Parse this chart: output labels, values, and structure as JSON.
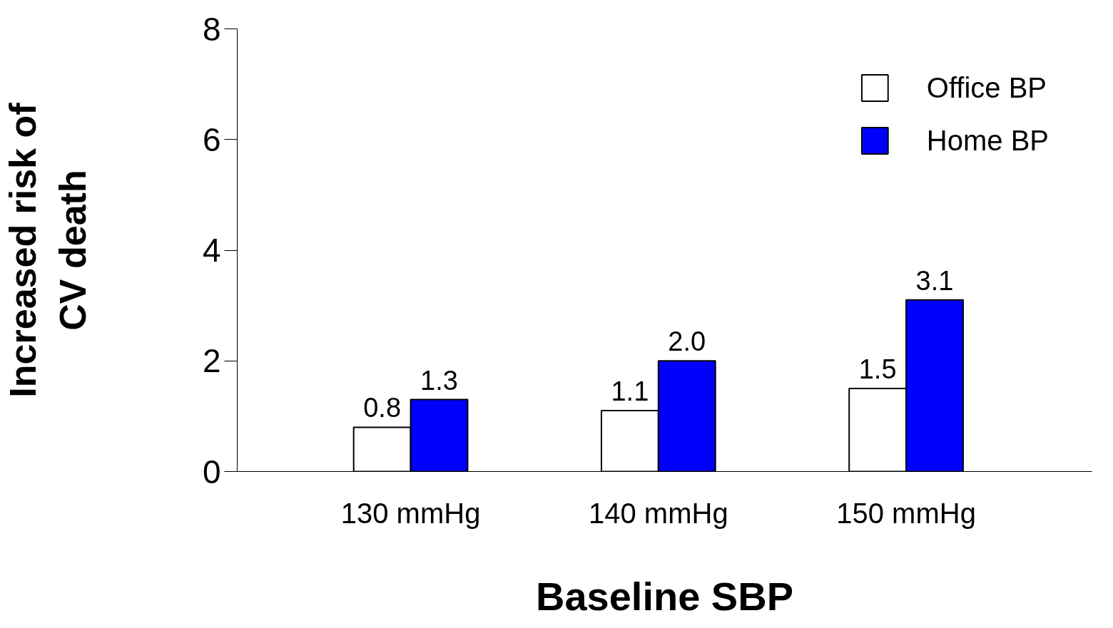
{
  "chart_data": {
    "type": "bar",
    "xlabel": "Baseline SBP",
    "ylabel": "Increased risk of\nCV death",
    "categories": [
      "130 mmHg",
      "140 mmHg",
      "150 mmHg"
    ],
    "series": [
      {
        "name": "Office BP",
        "color": "#ffffff",
        "values": [
          0.8,
          1.1,
          1.5
        ],
        "value_labels": [
          "0.8",
          "1.1",
          "1.5"
        ]
      },
      {
        "name": "Home BP",
        "color": "#0000ff",
        "values": [
          1.3,
          2.0,
          3.1
        ],
        "value_labels": [
          "1.3",
          "2.0",
          "3.1"
        ]
      }
    ],
    "ylim": [
      0,
      8
    ],
    "yticks": [
      0,
      2,
      4,
      6,
      8
    ],
    "grid": false,
    "legend": "top right"
  }
}
